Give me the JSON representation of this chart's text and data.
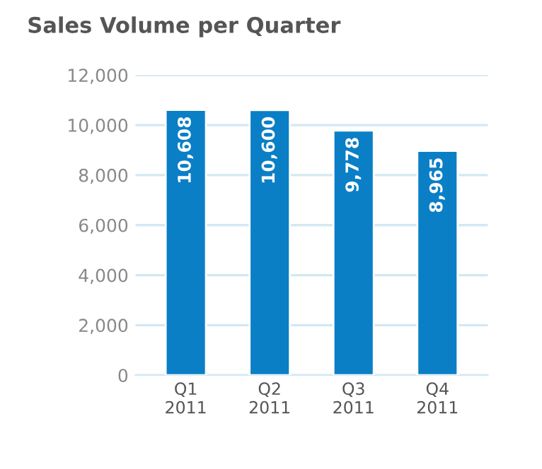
{
  "chart_data": {
    "type": "bar",
    "title": "Sales Volume per Quarter",
    "categories": [
      "Q1\n2011",
      "Q2\n2011",
      "Q3\n2011",
      "Q4\n2011"
    ],
    "values": [
      10608,
      10600,
      9778,
      8965
    ],
    "color": "#0a7fc6",
    "ylim": [
      0,
      12000
    ],
    "yticks": [
      {
        "value": 0,
        "label": "0"
      },
      {
        "value": 2000,
        "label": "2,000"
      },
      {
        "value": 4000,
        "label": "4,000"
      },
      {
        "value": 6000,
        "label": "6,000"
      },
      {
        "value": 8000,
        "label": "8,000"
      },
      {
        "value": 10000,
        "label": "10,000"
      },
      {
        "value": 12000,
        "label": "12,000"
      }
    ],
    "grid": "y",
    "value_labels": [
      "10,608",
      "10,600",
      "9,778",
      "8,965"
    ]
  }
}
